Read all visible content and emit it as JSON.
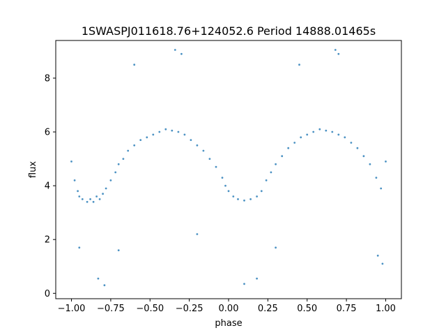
{
  "chart_data": {
    "type": "scatter",
    "title": "1SWASPJ011618.76+124052.6 Period 14888.01465s",
    "xlabel": "phase",
    "ylabel": "flux",
    "xlim": [
      -1.1,
      1.1
    ],
    "ylim": [
      -0.2,
      9.4
    ],
    "xticks": [
      -1.0,
      -0.75,
      -0.5,
      -0.25,
      0.0,
      0.25,
      0.5,
      0.75,
      1.0
    ],
    "xtick_labels": [
      "−1.00",
      "−0.75",
      "−0.50",
      "−0.25",
      "0.00",
      "0.25",
      "0.50",
      "0.75",
      "1.00"
    ],
    "yticks": [
      0,
      2,
      4,
      6,
      8
    ],
    "ytick_labels": [
      "0",
      "2",
      "4",
      "6",
      "8"
    ],
    "grid": false,
    "marker_color": "#1f77b4",
    "series": [
      {
        "points": [
          [
            -1.0,
            4.9
          ],
          [
            -0.98,
            4.2
          ],
          [
            -0.96,
            3.8
          ],
          [
            -0.95,
            3.6
          ],
          [
            -0.93,
            3.5
          ],
          [
            -0.9,
            3.4
          ],
          [
            -0.88,
            3.5
          ],
          [
            -0.86,
            3.4
          ],
          [
            -0.84,
            3.6
          ],
          [
            -0.82,
            3.5
          ],
          [
            -0.8,
            3.7
          ],
          [
            -0.78,
            3.9
          ],
          [
            -0.75,
            4.2
          ],
          [
            -0.72,
            4.5
          ],
          [
            -0.7,
            4.8
          ],
          [
            -0.67,
            5.0
          ],
          [
            -0.64,
            5.3
          ],
          [
            -0.6,
            5.5
          ],
          [
            -0.56,
            5.7
          ],
          [
            -0.52,
            5.8
          ],
          [
            -0.48,
            5.9
          ],
          [
            -0.44,
            6.0
          ],
          [
            -0.4,
            6.1
          ],
          [
            -0.36,
            6.05
          ],
          [
            -0.32,
            6.0
          ],
          [
            -0.28,
            5.9
          ],
          [
            -0.24,
            5.7
          ],
          [
            -0.2,
            5.5
          ],
          [
            -0.16,
            5.3
          ],
          [
            -0.12,
            5.0
          ],
          [
            -0.08,
            4.7
          ],
          [
            -0.04,
            4.3
          ],
          [
            -0.02,
            4.0
          ],
          [
            0.0,
            3.8
          ],
          [
            0.03,
            3.6
          ],
          [
            0.06,
            3.5
          ],
          [
            0.1,
            3.45
          ],
          [
            0.14,
            3.5
          ],
          [
            0.18,
            3.6
          ],
          [
            0.21,
            3.8
          ],
          [
            0.24,
            4.2
          ],
          [
            0.27,
            4.5
          ],
          [
            0.3,
            4.8
          ],
          [
            0.34,
            5.1
          ],
          [
            0.38,
            5.4
          ],
          [
            0.42,
            5.6
          ],
          [
            0.46,
            5.8
          ],
          [
            0.5,
            5.9
          ],
          [
            0.54,
            6.0
          ],
          [
            0.58,
            6.1
          ],
          [
            0.62,
            6.05
          ],
          [
            0.66,
            6.0
          ],
          [
            0.7,
            5.9
          ],
          [
            0.74,
            5.8
          ],
          [
            0.78,
            5.6
          ],
          [
            0.82,
            5.4
          ],
          [
            0.86,
            5.1
          ],
          [
            0.9,
            4.8
          ],
          [
            0.94,
            4.3
          ],
          [
            0.97,
            3.9
          ],
          [
            1.0,
            4.9
          ],
          [
            -0.83,
            0.55
          ],
          [
            -0.79,
            0.3
          ],
          [
            -0.7,
            1.6
          ],
          [
            -0.3,
            8.9
          ],
          [
            -0.34,
            9.05
          ],
          [
            0.18,
            0.55
          ],
          [
            0.1,
            0.35
          ],
          [
            0.7,
            8.9
          ],
          [
            0.68,
            9.05
          ],
          [
            -0.6,
            8.5
          ],
          [
            0.45,
            8.5
          ],
          [
            -0.2,
            2.2
          ],
          [
            0.95,
            1.4
          ],
          [
            0.98,
            1.1
          ],
          [
            -0.95,
            1.7
          ],
          [
            0.3,
            1.7
          ]
        ]
      }
    ]
  }
}
